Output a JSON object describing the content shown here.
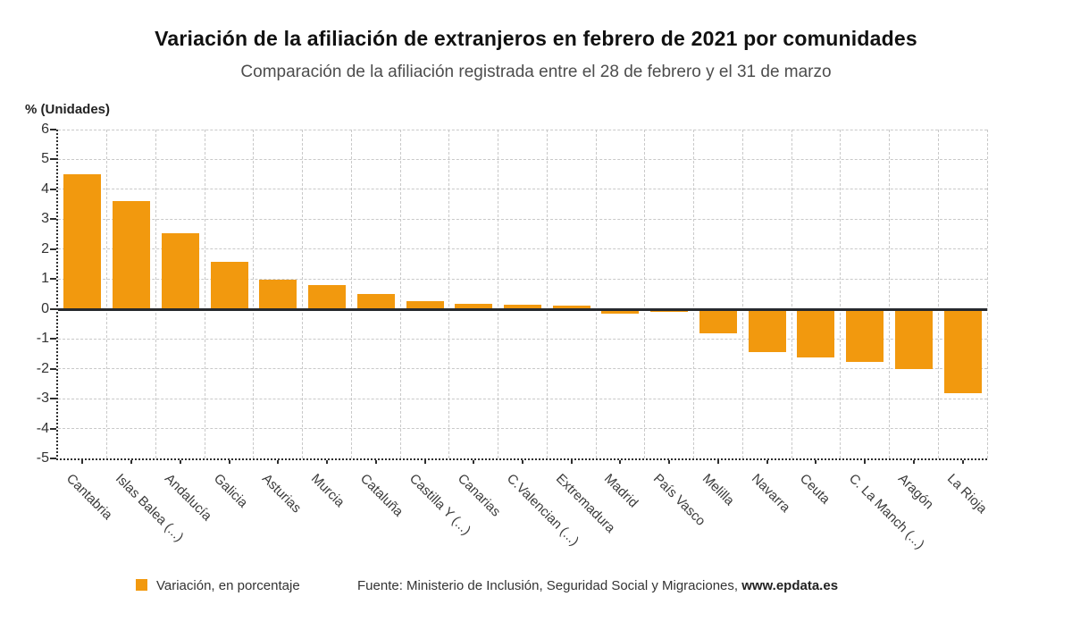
{
  "chart_data": {
    "type": "bar",
    "title": "Variación de la afiliación de extranjeros en febrero de 2021 por comunidades",
    "subtitle": "Comparación de la afiliación registrada entre el 28 de febrero y el 31 de marzo",
    "ylabel": "% (Unidades)",
    "xlabel": "",
    "ylim": [
      -5,
      6
    ],
    "yticks": [
      -5,
      -4,
      -3,
      -2,
      -1,
      0,
      1,
      2,
      3,
      4,
      5,
      6
    ],
    "grid": true,
    "legend_position": "bottom",
    "series_name": "Variación, en porcentaje",
    "bar_color": "#F2990E",
    "categories": [
      "Cantabria",
      "Islas Balea (...)",
      "Andalucía",
      "Galicia",
      "Asturias",
      "Murcia",
      "Cataluña",
      "Castilla Y (...)",
      "Canarias",
      "C.Valencian (...)",
      "Extremadura",
      "Madrid",
      "País Vasco",
      "Melilla",
      "Navarra",
      "Ceuta",
      "C. La Manch (...)",
      "Aragón",
      "La Rioja"
    ],
    "values": [
      4.5,
      3.62,
      2.52,
      1.58,
      0.97,
      0.8,
      0.5,
      0.27,
      0.16,
      0.15,
      0.1,
      -0.15,
      -0.1,
      -0.83,
      -1.45,
      -1.62,
      -1.78,
      -2.0,
      -2.82
    ]
  },
  "footer": {
    "source_prefix": "Fuente: Ministerio de Inclusión, Seguridad Social y Migraciones, ",
    "source_site": "www.epdata.es"
  },
  "colors": {
    "bar": "#F2990E",
    "axis": "#2E2E2E",
    "zero_line": "#26292E",
    "grid": "#C9C9C9",
    "text": "#333333"
  }
}
